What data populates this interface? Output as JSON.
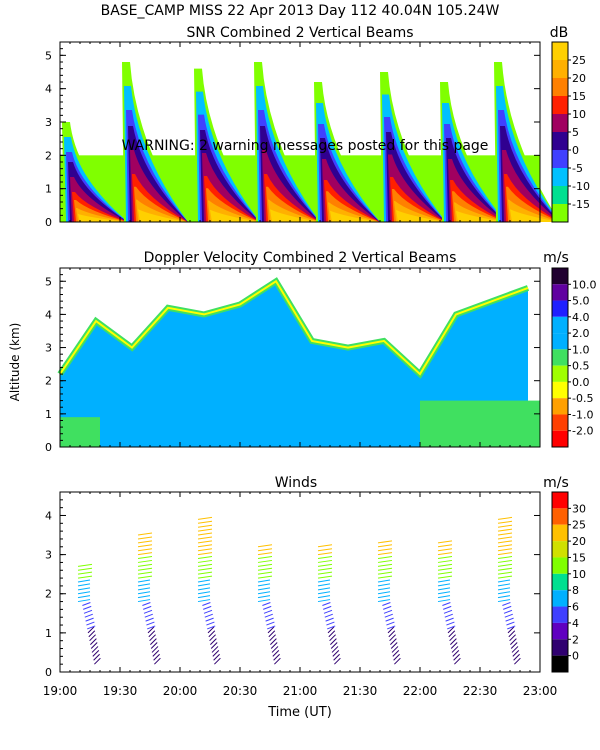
{
  "header": {
    "line1": "BASE_CAMP MISS  22 Apr 2013 Day 112 40.04N 105.24W"
  },
  "warning": "WARNING: 2 warning messages posted for this page",
  "shared": {
    "ylabel": "Altitude (km)",
    "xlabel": "Time (UT)",
    "xlim": [
      19.0,
      23.0
    ],
    "x_ticks": [
      "19:00",
      "19:30",
      "20:00",
      "20:30",
      "21:00",
      "21:30",
      "22:00",
      "22:30",
      "23:00"
    ]
  },
  "chart_data": [
    {
      "type": "heatmap",
      "title": "SNR Combined 2 Vertical Beams",
      "unit": "dB",
      "xlim": [
        19.0,
        23.0
      ],
      "ylim": [
        0,
        5.4
      ],
      "y_ticks": [
        "0",
        "1",
        "2",
        "3",
        "4",
        "5"
      ],
      "colorbar_labels": [
        "25",
        "20",
        "15",
        "10",
        "5",
        "0",
        "-5",
        "-10",
        "-15"
      ],
      "colorbar_colors": [
        "#ffd000",
        "#ffb000",
        "#ff8000",
        "#ff2000",
        "#a00060",
        "#300090",
        "#4040ff",
        "#00c0ff",
        "#00e090",
        "#80ff00"
      ],
      "bursts": [
        {
          "t": 19.05,
          "top": 3.0
        },
        {
          "t": 19.55,
          "top": 4.8
        },
        {
          "t": 20.15,
          "top": 4.6
        },
        {
          "t": 20.65,
          "top": 4.8
        },
        {
          "t": 21.15,
          "top": 4.2
        },
        {
          "t": 21.7,
          "top": 4.5
        },
        {
          "t": 22.2,
          "top": 4.2
        },
        {
          "t": 22.65,
          "top": 4.8
        }
      ]
    },
    {
      "type": "heatmap",
      "title": "Doppler Velocity Combined 2 Vertical Beams",
      "unit": "m/s",
      "xlim": [
        19.0,
        23.0
      ],
      "ylim": [
        0,
        5.4
      ],
      "y_ticks": [
        "0",
        "1",
        "2",
        "3",
        "4",
        "5"
      ],
      "colorbar_labels": [
        "10.0",
        "5.0",
        "4.0",
        "2.0",
        "1.0",
        "0.5",
        "0.0",
        "-0.5",
        "-1.0",
        "-2.0"
      ],
      "colorbar_colors": [
        "#200030",
        "#6000a0",
        "#2020ff",
        "#00b0ff",
        "#00b0ff",
        "#40e060",
        "#a0ff00",
        "#ffff00",
        "#ffa000",
        "#ff4000",
        "#ff0000"
      ],
      "profile": [
        {
          "t": 19.0,
          "top": 2.2
        },
        {
          "t": 19.3,
          "top": 3.8
        },
        {
          "t": 19.6,
          "top": 3.0
        },
        {
          "t": 19.9,
          "top": 4.2
        },
        {
          "t": 20.2,
          "top": 4.0
        },
        {
          "t": 20.5,
          "top": 4.3
        },
        {
          "t": 20.8,
          "top": 5.0
        },
        {
          "t": 21.1,
          "top": 3.2
        },
        {
          "t": 21.4,
          "top": 3.0
        },
        {
          "t": 21.7,
          "top": 3.2
        },
        {
          "t": 22.0,
          "top": 2.2
        },
        {
          "t": 22.3,
          "top": 4.0
        },
        {
          "t": 22.6,
          "top": 4.4
        },
        {
          "t": 22.9,
          "top": 4.8
        }
      ]
    },
    {
      "type": "scatter",
      "title": "Winds",
      "unit": "m/s",
      "xlim": [
        19.0,
        23.0
      ],
      "ylim": [
        0,
        4.6
      ],
      "y_ticks": [
        "0",
        "1",
        "2",
        "3",
        "4"
      ],
      "colorbar_labels": [
        "30",
        "25",
        "20",
        "15",
        "10",
        "8",
        "6",
        "4",
        "2",
        "0"
      ],
      "colorbar_colors": [
        "#ff0000",
        "#ff6000",
        "#ffc000",
        "#d0e000",
        "#80ff00",
        "#00e090",
        "#00b0ff",
        "#4040ff",
        "#6000c0",
        "#300070",
        "#000000"
      ],
      "profiles": [
        {
          "t": 19.15,
          "top": 2.8
        },
        {
          "t": 19.65,
          "top": 3.6
        },
        {
          "t": 20.15,
          "top": 4.0
        },
        {
          "t": 20.65,
          "top": 3.3
        },
        {
          "t": 21.15,
          "top": 3.3
        },
        {
          "t": 21.65,
          "top": 3.4
        },
        {
          "t": 22.15,
          "top": 3.4
        },
        {
          "t": 22.65,
          "top": 4.0
        }
      ]
    }
  ]
}
